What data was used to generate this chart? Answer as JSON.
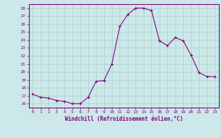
{
  "x": [
    0,
    1,
    2,
    3,
    4,
    5,
    6,
    7,
    8,
    9,
    10,
    11,
    12,
    13,
    14,
    15,
    16,
    17,
    18,
    19,
    20,
    21,
    22,
    23
  ],
  "y": [
    17.2,
    16.8,
    16.7,
    16.4,
    16.3,
    16.0,
    16.0,
    16.8,
    18.8,
    18.9,
    21.0,
    25.7,
    27.2,
    28.0,
    28.0,
    27.7,
    23.9,
    23.3,
    24.3,
    23.9,
    22.1,
    19.9,
    19.4,
    19.4
  ],
  "xlim": [
    -0.5,
    23.5
  ],
  "ylim": [
    15.5,
    28.5
  ],
  "yticks": [
    16,
    17,
    18,
    19,
    20,
    21,
    22,
    23,
    24,
    25,
    26,
    27,
    28
  ],
  "xticks": [
    0,
    1,
    2,
    3,
    4,
    5,
    6,
    7,
    8,
    9,
    10,
    11,
    12,
    13,
    14,
    15,
    16,
    17,
    18,
    19,
    20,
    21,
    22,
    23
  ],
  "xlabel": "Windchill (Refroidissement éolien,°C)",
  "line_color": "#800080",
  "marker": "+",
  "bg_color": "#cce8e8",
  "grid_color": "#aacfcf",
  "spine_color": "#800080",
  "tick_color": "#800080",
  "label_color": "#800080"
}
